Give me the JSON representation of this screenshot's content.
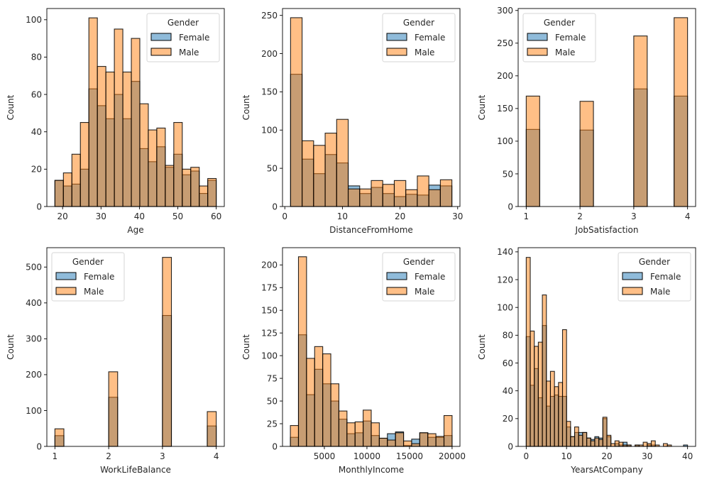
{
  "figure": {
    "colors": {
      "female": "#1f77b4",
      "male": "#ff7f0e",
      "bar_alpha": 0.5,
      "edge": "#000000",
      "axis": "#000000",
      "text": "#262626"
    }
  },
  "chart_data": [
    {
      "type": "bar",
      "subtype": "histogram",
      "title": "",
      "xlabel": "Age",
      "ylabel": "Count",
      "xlim": [
        15.9,
        62.1
      ],
      "ylim": [
        0,
        106
      ],
      "xticks": [
        20,
        30,
        40,
        50,
        60
      ],
      "yticks": [
        0,
        20,
        40,
        60,
        80,
        100
      ],
      "bin_edges_range": [
        18,
        60
      ],
      "bins": 19,
      "legend": {
        "title": "Gender",
        "entries": [
          "Female",
          "Male"
        ],
        "position": "upper right"
      },
      "series": [
        {
          "name": "Female",
          "values": [
            14,
            11,
            12,
            20,
            63,
            54,
            47,
            60,
            47,
            67,
            31,
            24,
            32,
            21,
            28,
            17,
            19,
            7,
            14
          ]
        },
        {
          "name": "Male",
          "values": [
            14,
            18,
            28,
            45,
            101,
            75,
            72,
            95,
            72,
            90,
            55,
            41,
            42,
            22,
            45,
            20,
            21,
            11,
            15
          ]
        }
      ]
    },
    {
      "type": "bar",
      "subtype": "histogram",
      "title": "",
      "xlabel": "DistanceFromHome",
      "ylabel": "Count",
      "xlim": [
        -0.4,
        30.4
      ],
      "ylim": [
        0,
        259
      ],
      "xticks": [
        0,
        10,
        20,
        30
      ],
      "yticks": [
        0,
        50,
        100,
        150,
        200,
        250
      ],
      "bin_edges_range": [
        1,
        29
      ],
      "bins": 14,
      "legend": {
        "title": "Gender",
        "entries": [
          "Female",
          "Male"
        ],
        "position": "upper right"
      },
      "series": [
        {
          "name": "Female",
          "values": [
            173,
            62,
            43,
            68,
            57,
            27,
            17,
            25,
            17,
            13,
            16,
            15,
            28,
            27
          ]
        },
        {
          "name": "Male",
          "values": [
            247,
            86,
            80,
            96,
            114,
            23,
            23,
            34,
            29,
            34,
            22,
            40,
            22,
            35
          ]
        }
      ]
    },
    {
      "type": "bar",
      "subtype": "histogram",
      "title": "",
      "xlabel": "JobSatisfaction",
      "ylabel": "Count",
      "xlim": [
        0.85,
        4.15
      ],
      "ylim": [
        0,
        303
      ],
      "xticks": [
        1,
        2,
        3,
        4
      ],
      "yticks": [
        0,
        50,
        100,
        150,
        200,
        250,
        300
      ],
      "bin_edges_range": [
        1,
        4
      ],
      "bins": 12,
      "legend": {
        "title": "Gender",
        "entries": [
          "Female",
          "Male"
        ],
        "position": "upper left"
      },
      "series": [
        {
          "name": "Female",
          "values": [
            118,
            0,
            0,
            0,
            117,
            0,
            0,
            0,
            180,
            0,
            0,
            169
          ]
        },
        {
          "name": "Male",
          "values": [
            169,
            0,
            0,
            0,
            161,
            0,
            0,
            0,
            261,
            0,
            0,
            289
          ]
        }
      ]
    },
    {
      "type": "bar",
      "subtype": "histogram",
      "title": "",
      "xlabel": "WorkLifeBalance",
      "ylabel": "Count",
      "xlim": [
        0.85,
        4.15
      ],
      "ylim": [
        0,
        554
      ],
      "xticks": [
        1,
        2,
        3,
        4
      ],
      "yticks": [
        0,
        100,
        200,
        300,
        400,
        500
      ],
      "bin_edges_range": [
        1,
        4
      ],
      "bins": 18,
      "legend": {
        "title": "Gender",
        "entries": [
          "Female",
          "Male"
        ],
        "position": "upper left"
      },
      "series": [
        {
          "name": "Female",
          "values": [
            30,
            0,
            0,
            0,
            0,
            0,
            137,
            0,
            0,
            0,
            0,
            0,
            365,
            0,
            0,
            0,
            0,
            57
          ]
        },
        {
          "name": "Male",
          "values": [
            49,
            0,
            0,
            0,
            0,
            0,
            208,
            0,
            0,
            0,
            0,
            0,
            527,
            0,
            0,
            0,
            0,
            97
          ]
        }
      ]
    },
    {
      "type": "bar",
      "subtype": "histogram",
      "title": "",
      "xlabel": "MonthlyIncome",
      "ylabel": "Count",
      "xlim": [
        84,
        20924
      ],
      "ylim": [
        0,
        219
      ],
      "xticks": [
        5000,
        10000,
        15000,
        20000
      ],
      "yticks": [
        0,
        25,
        50,
        75,
        100,
        125,
        150,
        175,
        200
      ],
      "bin_edges_range": [
        1009,
        19999
      ],
      "bins": 20,
      "legend": {
        "title": "Gender",
        "entries": [
          "Female",
          "Male"
        ],
        "position": "upper right"
      },
      "series": [
        {
          "name": "Female",
          "values": [
            10,
            123,
            57,
            85,
            69,
            50,
            30,
            14,
            15,
            28,
            12,
            9,
            14,
            16,
            1,
            8,
            15,
            10,
            10,
            12
          ]
        },
        {
          "name": "Male",
          "values": [
            23,
            209,
            97,
            110,
            102,
            69,
            39,
            26,
            27,
            40,
            26,
            9,
            7,
            15,
            6,
            3,
            15,
            14,
            11,
            34
          ]
        }
      ]
    },
    {
      "type": "bar",
      "subtype": "histogram",
      "title": "",
      "xlabel": "YearsAtCompany",
      "ylabel": "Count",
      "xlim": [
        -2,
        42
      ],
      "ylim": [
        0,
        143
      ],
      "xticks": [
        0,
        10,
        20,
        30,
        40
      ],
      "yticks": [
        0,
        20,
        40,
        60,
        80,
        100,
        120,
        140
      ],
      "bin_edges_range": [
        0,
        40
      ],
      "bins": 40,
      "legend": {
        "title": "Gender",
        "entries": [
          "Female",
          "Male"
        ],
        "position": "upper right"
      },
      "series": [
        {
          "name": "Female",
          "values": [
            79,
            44,
            56,
            35,
            87,
            29,
            36,
            37,
            36,
            36,
            14,
            7,
            10,
            10,
            10,
            6,
            5,
            7,
            6,
            20,
            7,
            0,
            2,
            1,
            3,
            1,
            0,
            1,
            0,
            0,
            1,
            1,
            0,
            0,
            0,
            0,
            0,
            0,
            0,
            1
          ]
        },
        {
          "name": "Male",
          "values": [
            136,
            83,
            72,
            75,
            109,
            47,
            54,
            43,
            46,
            84,
            18,
            7,
            14,
            8,
            10,
            6,
            4,
            6,
            5,
            21,
            8,
            2,
            4,
            3,
            1,
            1,
            0,
            1,
            1,
            3,
            2,
            4,
            1,
            0,
            2,
            1,
            0,
            0,
            0,
            0
          ]
        }
      ]
    }
  ]
}
